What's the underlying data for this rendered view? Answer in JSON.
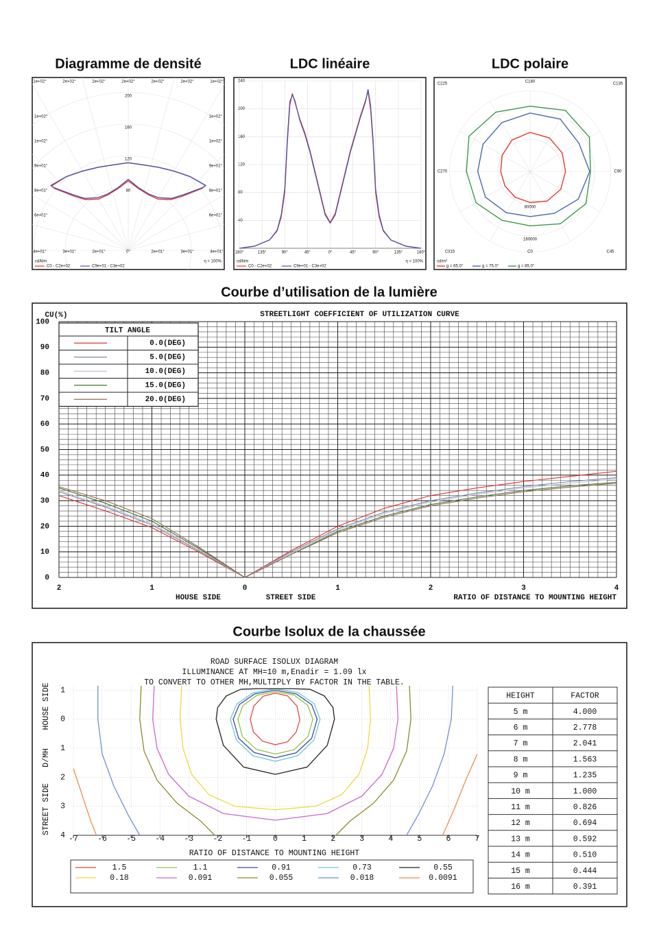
{
  "chart_data": [
    {
      "type": "density",
      "title": "Diagramme de densité",
      "unit_label": "cd/klm",
      "efficiency_label": "η = 100%",
      "frame_labels": {
        "top": [
          "1e+02°",
          "2e+02°",
          "2e+02°",
          "2e+02°",
          "2e+02°",
          "2e+02°",
          "1e+02°"
        ],
        "left": [
          "1e+02°",
          "1e+02°",
          "9e+01°",
          "8e+01°",
          "6e+01°"
        ],
        "right": [
          "1e+02°",
          "1e+02°",
          "9e+01°",
          "8e+01°",
          "6e+01°"
        ],
        "bottom": [
          "4e+01°",
          "3e+01°",
          "2e+01°",
          "0°",
          "2e+01°",
          "3e+01°",
          "4e+01°"
        ]
      },
      "ylim": [
        0,
        200
      ],
      "yticks": [
        80,
        120,
        160,
        200
      ],
      "grid": true,
      "legend": "bottom",
      "x": [
        -50,
        -40,
        -30,
        -20,
        -10,
        0,
        10,
        20,
        30,
        40,
        50,
        50,
        45,
        40,
        30,
        20,
        10,
        0,
        -10,
        -20,
        -30,
        -40,
        -45,
        -50
      ],
      "series": [
        {
          "name": "C0 - C2e+02",
          "color": "#e8372c",
          "values": [
            127,
            122,
            116,
            112,
            110,
            111,
            110,
            112,
            116,
            122,
            128,
            122,
            97,
            84,
            75,
            75,
            79,
            88,
            79,
            75,
            75,
            84,
            97,
            122
          ]
        },
        {
          "name": "C9e+01 - C3e+02",
          "color": "#4a56a8",
          "values": [
            128,
            122,
            116,
            112,
            110,
            111,
            110,
            112,
            116,
            122,
            128,
            124,
            100,
            86,
            77,
            76,
            80,
            90,
            80,
            76,
            77,
            86,
            100,
            124
          ]
        }
      ]
    },
    {
      "type": "line",
      "title": "LDC linéaire",
      "unit_label": "cd/klm",
      "efficiency_label": "η = 100%",
      "xlim": [
        -180,
        180
      ],
      "ylim": [
        0,
        240
      ],
      "yticks": [
        40,
        80,
        120,
        160,
        200,
        240
      ],
      "xticks": [
        {
          "value": -180,
          "label": "180°"
        },
        {
          "value": -135,
          "label": "135°"
        },
        {
          "value": -90,
          "label": "90°"
        },
        {
          "value": -45,
          "label": "45°"
        },
        {
          "value": 0,
          "label": "0°"
        },
        {
          "value": 45,
          "label": "45°"
        },
        {
          "value": 90,
          "label": "90°"
        },
        {
          "value": 135,
          "label": "135°"
        },
        {
          "value": 180,
          "label": "180°"
        }
      ],
      "grid": true,
      "legend": "bottom",
      "x": [
        -180,
        -150,
        -120,
        -105,
        -97,
        -90,
        -85,
        -80,
        -75,
        -70,
        -60,
        -50,
        -40,
        -30,
        -20,
        -10,
        0,
        10,
        20,
        30,
        40,
        50,
        60,
        70,
        75,
        80,
        85,
        90,
        97,
        105,
        120,
        150,
        180
      ],
      "series": [
        {
          "name": "C0 - C2e+02",
          "color": "#e8372c",
          "values": [
            0,
            3,
            12,
            25,
            45,
            80,
            150,
            205,
            222,
            210,
            185,
            165,
            140,
            110,
            80,
            50,
            37,
            50,
            80,
            110,
            140,
            165,
            190,
            212,
            225,
            200,
            150,
            80,
            45,
            25,
            12,
            3,
            0
          ]
        },
        {
          "name": "C9e+01 - C3e+02",
          "color": "#4a56a8",
          "values": [
            0,
            3,
            12,
            26,
            48,
            85,
            155,
            210,
            220,
            212,
            183,
            163,
            138,
            108,
            78,
            48,
            36,
            48,
            78,
            108,
            138,
            163,
            188,
            210,
            228,
            205,
            155,
            85,
            48,
            26,
            12,
            3,
            0
          ]
        }
      ]
    },
    {
      "type": "polar",
      "title": "LDC polaire",
      "unit_label": "cd/m²",
      "ylim": [
        0,
        200000
      ],
      "yticks": [
        80000,
        160000
      ],
      "grid": true,
      "legend": "bottom",
      "xticks": [
        {
          "value": 0,
          "label": "C0"
        },
        {
          "value": 45,
          "label": "C45"
        },
        {
          "value": 90,
          "label": "C90"
        },
        {
          "value": 135,
          "label": "C135"
        },
        {
          "value": 180,
          "label": "C180"
        },
        {
          "value": 225,
          "label": "C225"
        },
        {
          "value": 270,
          "label": "C270"
        },
        {
          "value": 315,
          "label": "C315"
        }
      ],
      "x": [
        0,
        30,
        60,
        90,
        120,
        150,
        180,
        210,
        240,
        270,
        300,
        330
      ],
      "series": [
        {
          "name": "g = 65.0°",
          "color": "#e8372c",
          "values": [
            77000,
            85000,
            88000,
            88000,
            92000,
            96000,
            97000,
            90000,
            80000,
            73000,
            72000,
            74000
          ]
        },
        {
          "name": "g = 75.0°",
          "color": "#4a66b8",
          "values": [
            112000,
            120000,
            138000,
            148000,
            140000,
            150000,
            145000,
            140000,
            135000,
            130000,
            128000,
            118000
          ]
        },
        {
          "name": "g = 85.0°",
          "color": "#3a9a4a",
          "values": [
            135000,
            150000,
            160000,
            150000,
            170000,
            175000,
            162000,
            170000,
            175000,
            158000,
            155000,
            140000
          ]
        }
      ]
    },
    {
      "type": "line",
      "title": "Courbe d’utilisation de la lumière",
      "subtitle": "STREETLIGHT COEFFICIENT OF UTILIZATION CURVE",
      "ylabel": "CU(%)",
      "xlabels": [
        "HOUSE SIDE",
        "STREET SIDE",
        "RATIO OF DISTANCE TO MOUNTING HEIGHT"
      ],
      "legend_title": "TILT ANGLE",
      "legend": "upper left",
      "xlim": [
        -2,
        4
      ],
      "ylim": [
        0,
        100
      ],
      "yticks": [
        0,
        10,
        20,
        30,
        40,
        50,
        60,
        70,
        80,
        90,
        100
      ],
      "xticks": [
        {
          "value": -2,
          "label": "2"
        },
        {
          "value": -1,
          "label": "1"
        },
        0,
        1,
        2,
        3,
        4
      ],
      "grid": true,
      "grid_step": [
        0.1,
        2
      ],
      "x": [
        -2,
        -1.5,
        -1,
        -0.5,
        0,
        0.5,
        1,
        1.5,
        2,
        2.5,
        3,
        3.5,
        4
      ],
      "series": [
        {
          "name": "0.0(DEG)",
          "color": "#e03030",
          "values": [
            32,
            26,
            19.5,
            10,
            0,
            10.5,
            20,
            27,
            32,
            35,
            37.5,
            39.5,
            41.5
          ]
        },
        {
          "name": "5.0(DEG)",
          "color": "#7a8aa0",
          "values": [
            33.5,
            27.5,
            20.5,
            10.5,
            0,
            10,
            19,
            25.5,
            30,
            33,
            35.5,
            37.5,
            39
          ]
        },
        {
          "name": "10.0(DEG)",
          "color": "#c4bce0",
          "values": [
            34,
            28,
            21,
            11,
            0,
            9.5,
            18.5,
            25,
            29.5,
            32.5,
            35,
            36.8,
            38.5
          ]
        },
        {
          "name": "15.0(DEG)",
          "color": "#3a7a2a",
          "values": [
            35,
            29,
            22,
            11.5,
            0,
            9,
            18,
            24,
            28.5,
            31.5,
            34,
            35.8,
            37.2
          ]
        },
        {
          "name": "20.0(DEG)",
          "color": "#9a6a50",
          "values": [
            35.5,
            30,
            23,
            12,
            0,
            9,
            17.5,
            23.5,
            28,
            31,
            33.5,
            35.3,
            36.8
          ]
        }
      ]
    },
    {
      "type": "contour",
      "title": "Courbe Isolux de la chaussée",
      "subtitle_lines": [
        "ROAD SURFACE ISOLUX DIAGRAM",
        "ILLUMINANCE AT MH=10 m,Enadir  = 1.09 lx",
        "TO CONVERT TO OTHER MH,MULTIPLY BY FACTOR IN THE TABLE."
      ],
      "xlabel": "RATIO OF DISTANCE TO MOUNTING HEIGHT",
      "ylabels": [
        "HOUSE SIDE",
        "D/MH",
        "STREET SIDE"
      ],
      "xlim": [
        -7,
        7
      ],
      "ylim": [
        -1.15,
        4
      ],
      "xticks": [
        -7,
        -6,
        -5,
        -4,
        -3,
        -2,
        -1,
        0,
        1,
        2,
        3,
        4,
        5,
        6,
        7
      ],
      "yticks": [
        {
          "value": -1,
          "label": "1"
        },
        0,
        1,
        2,
        3,
        4
      ],
      "grid": true,
      "legend": "bottom",
      "series": [
        {
          "name": "1.5",
          "color": "#e8453c",
          "x": [
            0,
            0.43,
            0.75,
            0.85,
            0.72,
            0.42,
            0,
            -0.44,
            -0.76,
            -0.87,
            -0.74,
            -0.42,
            0
          ],
          "values": [
            -0.9,
            -0.8,
            -0.45,
            0.02,
            0.45,
            0.78,
            0.88,
            0.76,
            0.44,
            0,
            -0.46,
            -0.79,
            -0.9
          ]
        },
        {
          "name": "1.1",
          "color": "#8dc63f",
          "x": [
            0,
            0.65,
            1.12,
            1.3,
            1.13,
            0.65,
            0,
            -0.66,
            -1.14,
            -1.3,
            -1.12,
            -0.64,
            0
          ],
          "values": [
            -0.95,
            -0.83,
            -0.48,
            0,
            0.6,
            1.05,
            1.2,
            1.04,
            0.6,
            0,
            -0.47,
            -0.82,
            -0.95
          ]
        },
        {
          "name": "0.91",
          "color": "#3d4a9c",
          "x": [
            0,
            0.73,
            1.26,
            1.45,
            1.26,
            0.72,
            0,
            -0.73,
            -1.27,
            -1.46,
            -1.25,
            -0.72,
            0
          ],
          "values": [
            -1.0,
            -0.87,
            -0.5,
            0,
            0.66,
            1.16,
            1.33,
            1.15,
            0.66,
            0,
            -0.5,
            -0.87,
            -1.0
          ]
        },
        {
          "name": "0.73",
          "color": "#6cc7d8",
          "x": [
            0,
            0.78,
            1.35,
            1.55,
            1.34,
            0.77,
            0,
            -0.78,
            -1.35,
            -1.56,
            -1.34,
            -0.77,
            0
          ],
          "values": [
            -1.05,
            -0.92,
            -0.53,
            0,
            0.72,
            1.26,
            1.45,
            1.26,
            0.72,
            0,
            -0.52,
            -0.91,
            -1.05
          ]
        },
        {
          "name": "0.55",
          "color": "#222222",
          "x": [
            -1.2,
            -0.6,
            0,
            0.6,
            1.2,
            1.7,
            2.0,
            2.05,
            1.8,
            1.1,
            0,
            -1.1,
            -1.8,
            -2.05,
            -2.0,
            -1.7,
            -1.2
          ],
          "values": [
            -1.03,
            -1.05,
            -1.05,
            -1.05,
            -1.03,
            -0.8,
            -0.4,
            0,
            0.9,
            1.65,
            1.9,
            1.65,
            0.9,
            0,
            -0.4,
            -0.8,
            -1.03
          ]
        },
        {
          "name": "0.18",
          "color": "#f0d838",
          "x": [
            -3.25,
            -3.3,
            -3.2,
            -2.9,
            -2.3,
            -1.4,
            0,
            1.4,
            2.3,
            2.9,
            3.2,
            3.3,
            3.25
          ],
          "values": [
            -1.15,
            0,
            1.0,
            1.9,
            2.6,
            3.0,
            3.12,
            3.0,
            2.6,
            1.9,
            1.0,
            0,
            -1.15
          ]
        },
        {
          "name": "0.091",
          "color": "#cc66cc",
          "x": [
            -4.2,
            -4.25,
            -4.1,
            -3.7,
            -3.0,
            -1.8,
            0,
            1.8,
            3.0,
            3.7,
            4.1,
            4.25,
            4.2
          ],
          "values": [
            -1.15,
            0,
            1.0,
            1.9,
            2.65,
            3.25,
            3.48,
            3.25,
            2.65,
            1.9,
            1.0,
            0,
            -1.15
          ]
        },
        {
          "name": "0.055",
          "color": "#8a8a2a",
          "x": [
            -4.65,
            -4.7,
            -4.55,
            -4.1,
            -3.4,
            -2.6,
            -2.1,
            null,
            2.1,
            2.6,
            3.4,
            4.1,
            4.55,
            4.7,
            4.65
          ],
          "values": [
            -1.15,
            0,
            1.1,
            2.1,
            2.9,
            3.5,
            4.0,
            null,
            4.0,
            3.5,
            2.9,
            2.1,
            1.1,
            0,
            -1.15
          ]
        },
        {
          "name": "0.018",
          "color": "#6e8fd6",
          "x": [
            -6.15,
            -6.15,
            -6.0,
            -5.6,
            -5.1,
            -4.7,
            null,
            4.55,
            4.95,
            5.45,
            5.85,
            6.1,
            6.15
          ],
          "values": [
            -1.15,
            0,
            1.2,
            2.3,
            3.3,
            4.0,
            null,
            4.0,
            3.3,
            2.3,
            1.2,
            0,
            -1.15
          ]
        },
        {
          "name": "0.0091",
          "color": "#f08a4b",
          "x": [
            -7,
            -6.7,
            -6.4,
            -6.2,
            null,
            5.8,
            6.2,
            6.6,
            7
          ],
          "values": [
            1.7,
            2.6,
            3.5,
            4.0,
            null,
            4.0,
            3.1,
            2.1,
            1.2
          ]
        }
      ],
      "table": {
        "header": [
          "HEIGHT",
          "FACTOR"
        ],
        "rows": [
          [
            "5 m",
            "4.000"
          ],
          [
            "6 m",
            "2.778"
          ],
          [
            "7 m",
            "2.041"
          ],
          [
            "8 m",
            "1.563"
          ],
          [
            "9 m",
            "1.235"
          ],
          [
            "10 m",
            "1.000"
          ],
          [
            "11 m",
            "0.826"
          ],
          [
            "12 m",
            "0.694"
          ],
          [
            "13 m",
            "0.592"
          ],
          [
            "14 m",
            "0.510"
          ],
          [
            "15 m",
            "0.444"
          ],
          [
            "16 m",
            "0.391"
          ]
        ]
      }
    }
  ]
}
